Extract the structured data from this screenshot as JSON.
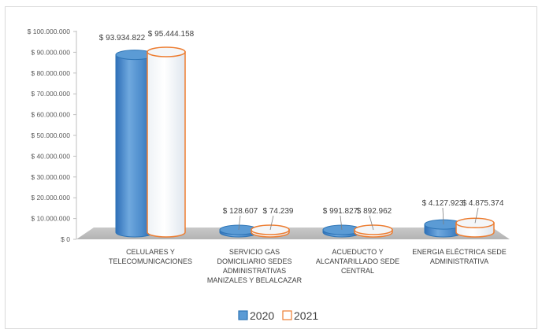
{
  "chart_data": {
    "type": "bar",
    "style": "3d-cylinder",
    "categories": [
      [
        "CELULARES Y",
        "TELECOMUNICACIONES"
      ],
      [
        "SERVICIO GAS",
        "DOMICILIARIO SEDES",
        "ADMINISTRATIVAS",
        "MANIZALES Y BELALCAZAR"
      ],
      [
        "ACUEDUCTO Y",
        "ALCANTARILLADO SEDE",
        "CENTRAL"
      ],
      [
        "ENERGIA ELÉCTRICA SEDE",
        "ADMINISTRATIVA"
      ]
    ],
    "series": [
      {
        "name": "2020",
        "values": [
          93934822,
          128607,
          991827,
          4127923
        ],
        "labels": [
          "$ 93.934.822",
          "$ 128.607",
          "$ 991.827",
          "$ 4.127.923"
        ],
        "color": "#5b9bd5"
      },
      {
        "name": "2021",
        "values": [
          95444158,
          74239,
          892962,
          4875374
        ],
        "labels": [
          "$ 95.444.158",
          "$ 74.239",
          "$ 892.962",
          "$ 4.875.374"
        ],
        "color": "#ed7d31"
      }
    ],
    "ylim": [
      0,
      100000000
    ],
    "yticks": [
      {
        "value": 0,
        "label": "$ 0"
      },
      {
        "value": 10000000,
        "label": "$ 10.000.000"
      },
      {
        "value": 20000000,
        "label": "$ 20.000.000"
      },
      {
        "value": 30000000,
        "label": "$ 30.000.000"
      },
      {
        "value": 40000000,
        "label": "$ 40.000.000"
      },
      {
        "value": 50000000,
        "label": "$ 50.000.000"
      },
      {
        "value": 60000000,
        "label": "$ 60.000.000"
      },
      {
        "value": 70000000,
        "label": "$ 70.000.000"
      },
      {
        "value": 80000000,
        "label": "$ 80.000.000"
      },
      {
        "value": 90000000,
        "label": "$ 90.000.000"
      },
      {
        "value": 100000000,
        "label": "$ 100.000.000"
      }
    ],
    "grid": false,
    "legend_position": "bottom"
  }
}
